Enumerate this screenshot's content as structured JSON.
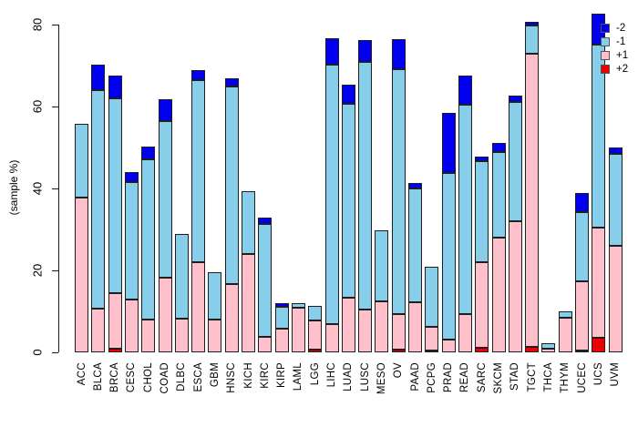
{
  "figure": {
    "background": "#ffffff"
  },
  "chart_data": {
    "type": "bar",
    "stacked": true,
    "title": "",
    "xlabel": "",
    "ylabel": "(sample %)",
    "ylim": [
      0,
      80
    ],
    "yticks": [
      0,
      20,
      40,
      60,
      80
    ],
    "grid": false,
    "legend_position": "top-right",
    "stack_order_bottom_to_top": [
      "+2",
      "+1",
      "-1",
      "-2"
    ],
    "categories": [
      "ACC",
      "BLCA",
      "BRCA",
      "CESC",
      "CHOL",
      "COAD",
      "DLBC",
      "ESCA",
      "GBM",
      "HNSC",
      "KICH",
      "KIRC",
      "KIRP",
      "LAML",
      "LGG",
      "LIHC",
      "LUAD",
      "LUSC",
      "MESO",
      "OV",
      "PAAD",
      "PCPG",
      "PRAD",
      "READ",
      "SARC",
      "SKCM",
      "STAD",
      "TGCT",
      "THCA",
      "THYM",
      "UCEC",
      "UCS",
      "UVM"
    ],
    "series": [
      {
        "name": "+2",
        "color": "#EE0000",
        "values": [
          0,
          0,
          1.0,
          0,
          0,
          0,
          0,
          0,
          0,
          0,
          0,
          0,
          0,
          0,
          0.6,
          0,
          0,
          0,
          0,
          0.7,
          0,
          0.5,
          0,
          0,
          1.2,
          0,
          0,
          1.4,
          0,
          0,
          0.4,
          3.6,
          0
        ]
      },
      {
        "name": "+1",
        "color": "#FFC0CB",
        "values": [
          37.7,
          10.6,
          13.4,
          12.8,
          8.0,
          18.2,
          8.2,
          22.0,
          8.0,
          16.7,
          24.1,
          3.7,
          5.8,
          11.0,
          7.2,
          6.9,
          13.3,
          10.4,
          12.4,
          8.6,
          12.2,
          5.8,
          3.2,
          9.4,
          20.7,
          28.0,
          31.9,
          71.6,
          1.0,
          8.5,
          17.0,
          26.8,
          26.1
        ]
      },
      {
        "name": "-1",
        "color": "#87CEEB",
        "values": [
          18.0,
          53.3,
          47.6,
          28.8,
          39.2,
          38.3,
          20.8,
          44.4,
          11.5,
          48.1,
          15.3,
          27.6,
          5.3,
          1.0,
          3.5,
          63.3,
          47.4,
          60.5,
          17.4,
          59.8,
          27.8,
          14.5,
          40.5,
          51.0,
          24.8,
          20.9,
          29.2,
          6.8,
          1.2,
          1.4,
          16.8,
          44.8,
          22.4
        ]
      },
      {
        "name": "-2",
        "color": "#0000EE",
        "values": [
          0,
          6.3,
          5.6,
          2.5,
          3.0,
          5.2,
          0,
          2.6,
          0,
          2.2,
          0,
          1.5,
          0.9,
          0,
          0,
          6.4,
          4.7,
          5.4,
          0,
          7.3,
          1.3,
          0,
          14.8,
          7.2,
          1.1,
          2.2,
          1.6,
          0.9,
          0,
          0,
          4.7,
          7.4,
          1.5
        ]
      }
    ]
  },
  "legend": {
    "entries": [
      {
        "label": "-2",
        "color": "#0000EE"
      },
      {
        "label": "-1",
        "color": "#87CEEB"
      },
      {
        "label": "+1",
        "color": "#FFC0CB"
      },
      {
        "label": "+2",
        "color": "#EE0000"
      }
    ]
  }
}
